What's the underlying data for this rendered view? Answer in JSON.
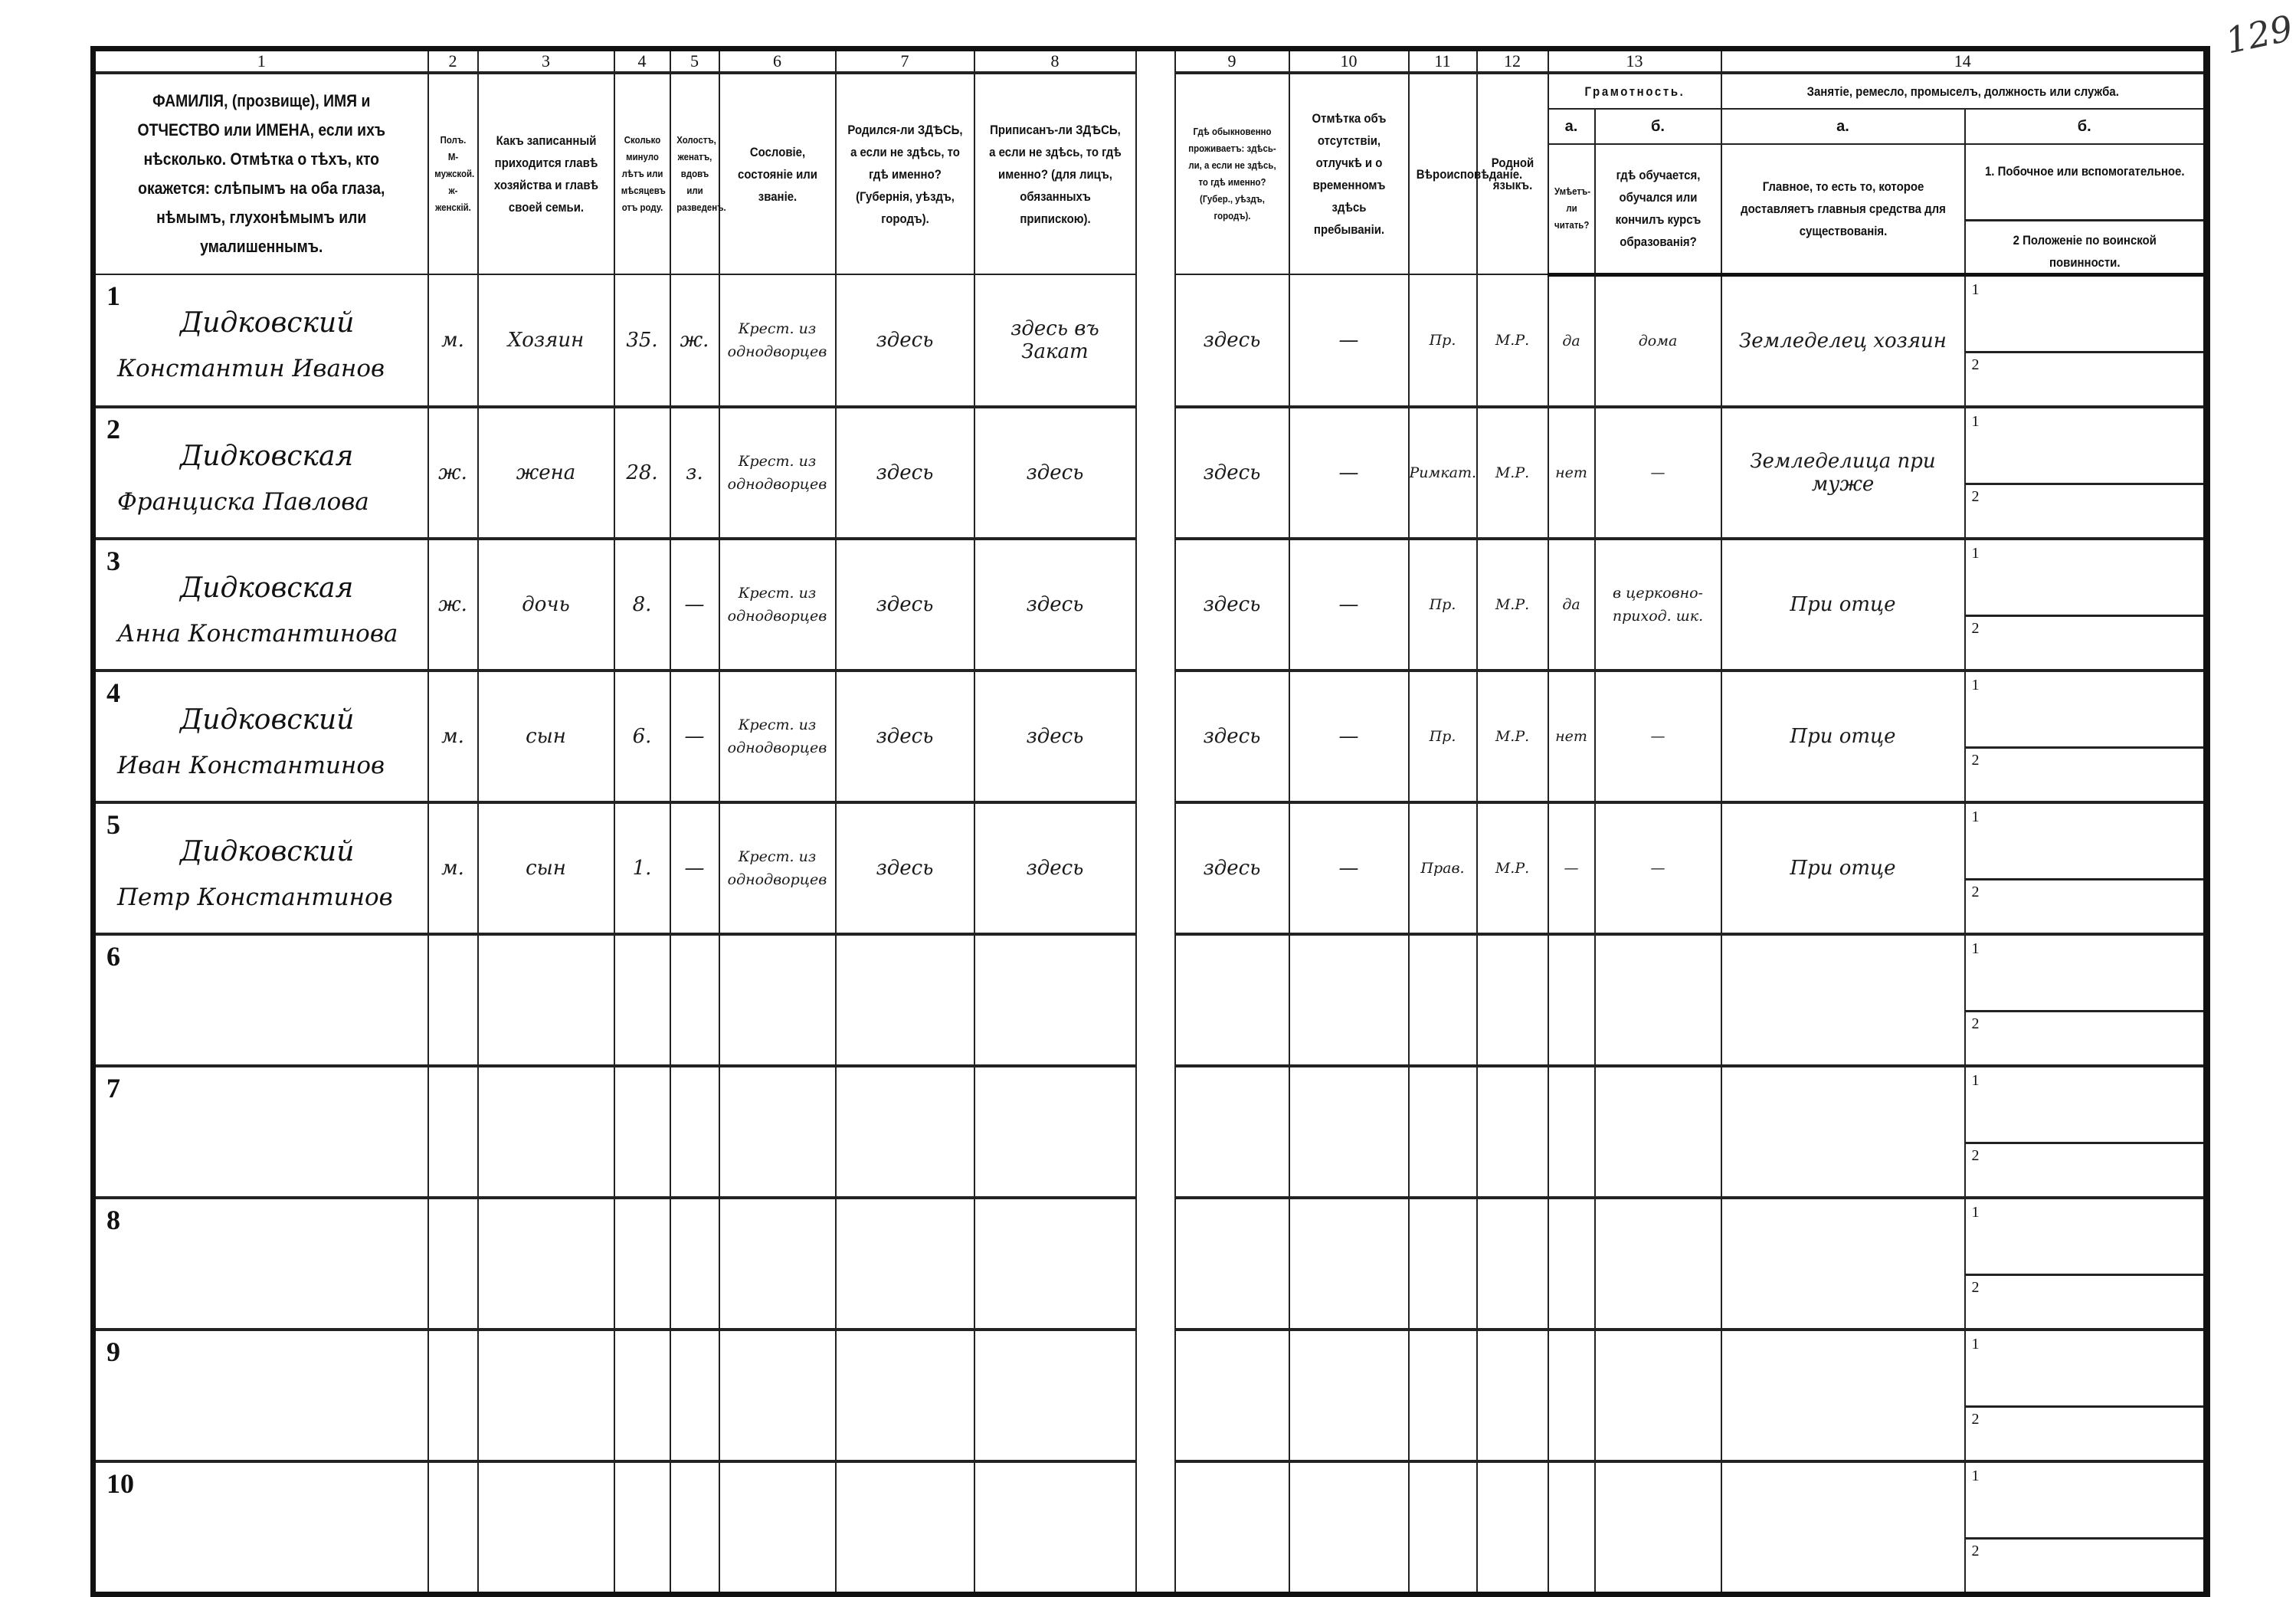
{
  "page_number": "129",
  "column_numbers": [
    "1",
    "2",
    "3",
    "4",
    "5",
    "6",
    "7",
    "8",
    "9",
    "10",
    "11",
    "12",
    "13",
    "14"
  ],
  "headers": {
    "c1": "ФАМИЛІЯ, (прозвище), ИМЯ и ОТЧЕСТВО или ИМЕНА, если ихъ нѣсколько. Отмѣтка о тѣхъ, кто окажется: слѣпымъ на оба глаза, нѣмымъ, глухонѣмымъ или умалишеннымъ.",
    "c2": "Полъ. М-мужской. ж-женскій.",
    "c3": "Какъ записанный приходится главѣ хозяйства и главѣ своей семьи.",
    "c4": "Сколько минуло лѣтъ или мѣсяцевъ отъ роду.",
    "c5": "Холостъ, женатъ, вдовъ или разведенъ.",
    "c6": "Сословіе, состояніе или званіе.",
    "c7": "Родился-ли ЗДѢСЬ, а если не здѣсь, то гдѣ именно? (Губернія, уѣздъ, городъ).",
    "c8": "Приписанъ-ли ЗДѢСЬ, а если не здѣсь, то гдѣ именно? (для лицъ, обязанныхъ припискою).",
    "c9": "Гдѣ обыкновенно проживаетъ: здѣсь-ли, а если не здѣсь, то гдѣ именно? (Губер., уѣздъ, городъ).",
    "c10": "Отмѣтка объ отсутствіи, отлучкѣ и о временномъ здѣсь пребываніи.",
    "c11": "Вѣроисповѣданіе.",
    "c12": "Родной языкъ.",
    "c13": "Грамотность.",
    "c13a_label": "а.",
    "c13b_label": "б.",
    "c13a": "Умѣетъ-ли читать?",
    "c13b": "гдѣ обучается, обучался или кончилъ курсъ образованія?",
    "c14": "Занятіе, ремесло, промыселъ, должность или служба.",
    "c14a_label": "а.",
    "c14b_label": "б.",
    "c14a": "Главное, то есть то, которое доставляетъ главныя средства для существованія.",
    "c14b_1": "1. Побочное или вспомогательное.",
    "c14b_2": "2 Положеніе по воинской повинности."
  },
  "sub_labels": {
    "one": "1",
    "two": "2"
  },
  "rows": [
    {
      "num": "1",
      "surname": "Дидковский",
      "given": "Константин Иванов",
      "sex": "м.",
      "relation": "Хозяин",
      "age": "35.",
      "marital": "ж.",
      "estate": "Крест. из однодворцев",
      "born": "здесь",
      "registered": "здесь въ Закат",
      "resides": "здесь",
      "absence": "—",
      "religion": "Пр.",
      "language": "М.Р.",
      "literate": "да",
      "school": "дома",
      "occupation": "Земледелец хозяин"
    },
    {
      "num": "2",
      "surname": "Дидковская",
      "given": "Франциска Павлова",
      "sex": "ж.",
      "relation": "жена",
      "age": "28.",
      "marital": "з.",
      "estate": "Крест. из однодворцев",
      "born": "здесь",
      "registered": "здесь",
      "resides": "здесь",
      "absence": "—",
      "religion": "Римкат.",
      "language": "М.Р.",
      "literate": "нет",
      "school": "—",
      "occupation": "Земледелица при муже"
    },
    {
      "num": "3",
      "surname": "Дидковская",
      "given": "Анна Константинова",
      "sex": "ж.",
      "relation": "дочь",
      "age": "8.",
      "marital": "—",
      "estate": "Крест. из однодворцев",
      "born": "здесь",
      "registered": "здесь",
      "resides": "здесь",
      "absence": "—",
      "religion": "Пр.",
      "language": "М.Р.",
      "literate": "да",
      "school": "в церковно-приход. шк.",
      "occupation": "При отце"
    },
    {
      "num": "4",
      "surname": "Дидковский",
      "given": "Иван Константинов",
      "sex": "м.",
      "relation": "сын",
      "age": "6.",
      "marital": "—",
      "estate": "Крест. из однодворцев",
      "born": "здесь",
      "registered": "здесь",
      "resides": "здесь",
      "absence": "—",
      "religion": "Пр.",
      "language": "М.Р.",
      "literate": "нет",
      "school": "—",
      "occupation": "При отце"
    },
    {
      "num": "5",
      "surname": "Дидковский",
      "given": "Петр Константинов",
      "sex": "м.",
      "relation": "сын",
      "age": "1.",
      "marital": "—",
      "estate": "Крест. из однодворцев",
      "born": "здесь",
      "registered": "здесь",
      "resides": "здесь",
      "absence": "—",
      "religion": "Прав.",
      "language": "М.Р.",
      "literate": "—",
      "school": "—",
      "occupation": "При отце"
    },
    {
      "num": "6"
    },
    {
      "num": "7"
    },
    {
      "num": "8"
    },
    {
      "num": "9"
    },
    {
      "num": "10"
    }
  ]
}
